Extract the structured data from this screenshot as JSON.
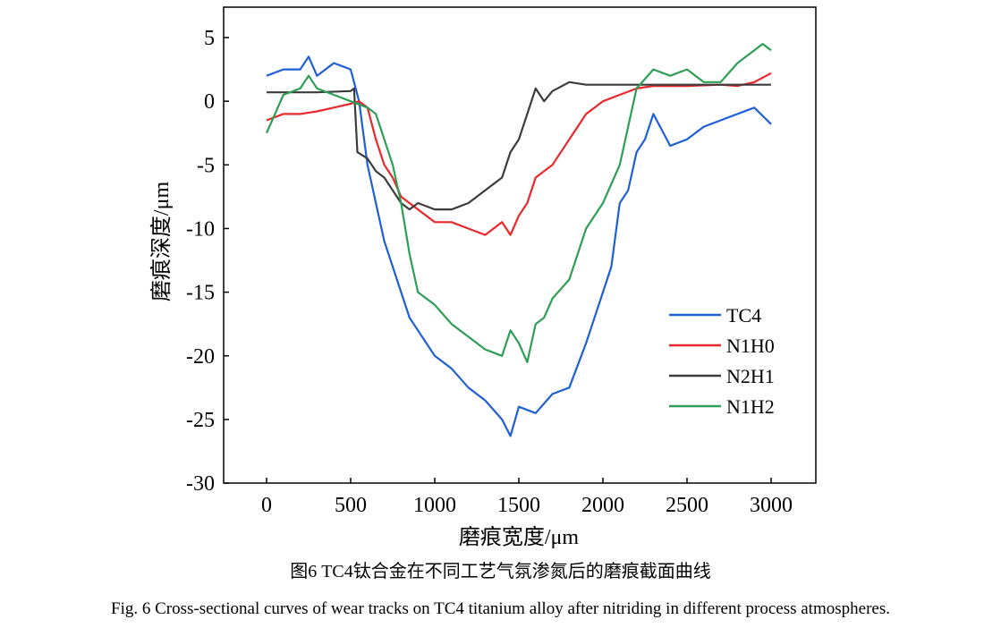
{
  "chart_data": {
    "type": "line",
    "xlabel": "磨痕宽度/μm",
    "ylabel": "磨痕深度/μm",
    "xlim": [
      -250,
      3250
    ],
    "ylim": [
      -30,
      7
    ],
    "xticks": [
      0,
      500,
      1000,
      1500,
      2000,
      2500,
      3000
    ],
    "yticks": [
      5,
      0,
      -5,
      -10,
      -15,
      -20,
      -25,
      -30
    ],
    "grid": false,
    "legend": "right",
    "series": [
      {
        "name": "TC4",
        "color": "#1f5fd6",
        "x": [
          0,
          100,
          200,
          250,
          300,
          400,
          500,
          550,
          600,
          650,
          700,
          750,
          800,
          850,
          900,
          1000,
          1100,
          1200,
          1300,
          1400,
          1450,
          1500,
          1600,
          1700,
          1800,
          1900,
          2000,
          2050,
          2100,
          2150,
          2200,
          2250,
          2300,
          2400,
          2500,
          2600,
          2700,
          2800,
          2900,
          3000
        ],
        "y": [
          2,
          2.5,
          2.5,
          3.5,
          2,
          3,
          2.5,
          0,
          -5,
          -8,
          -11,
          -13,
          -15,
          -17,
          -18,
          -20,
          -21,
          -22.5,
          -23.5,
          -25,
          -26.3,
          -24,
          -24.5,
          -23,
          -22.5,
          -19,
          -15,
          -13,
          -8,
          -7,
          -4,
          -3,
          -1,
          -3.5,
          -3,
          -2,
          -1.5,
          -1,
          -0.5,
          -1.8
        ]
      },
      {
        "name": "N1H0",
        "color": "#e8282b",
        "x": [
          0,
          100,
          200,
          300,
          400,
          500,
          550,
          600,
          650,
          700,
          750,
          800,
          850,
          900,
          1000,
          1100,
          1200,
          1300,
          1400,
          1450,
          1500,
          1550,
          1600,
          1700,
          1800,
          1850,
          1900,
          2000,
          2100,
          2200,
          2300,
          2500,
          2700,
          2800,
          2900,
          3000
        ],
        "y": [
          -1.5,
          -1,
          -1,
          -0.8,
          -0.5,
          -0.2,
          0,
          -0.5,
          -3,
          -5,
          -6,
          -7.5,
          -8,
          -8.5,
          -9.5,
          -9.5,
          -10,
          -10.5,
          -9.5,
          -10.5,
          -9,
          -8,
          -6,
          -5,
          -3,
          -2,
          -1,
          0,
          0.5,
          1,
          1.2,
          1.2,
          1.3,
          1.2,
          1.5,
          2.2
        ]
      },
      {
        "name": "N2H1",
        "color": "#3c3c3c",
        "x": [
          0,
          100,
          300,
          500,
          520,
          540,
          600,
          650,
          700,
          750,
          800,
          850,
          900,
          1000,
          1100,
          1200,
          1300,
          1400,
          1450,
          1500,
          1550,
          1600,
          1650,
          1700,
          1800,
          1900,
          2000,
          2500,
          3000
        ],
        "y": [
          0.7,
          0.7,
          0.7,
          0.8,
          1,
          -4,
          -4.5,
          -5.5,
          -6,
          -7,
          -8,
          -8.5,
          -8,
          -8.5,
          -8.5,
          -8,
          -7,
          -6,
          -4,
          -3,
          -1,
          1,
          0,
          0.8,
          1.5,
          1.3,
          1.3,
          1.3,
          1.3
        ]
      },
      {
        "name": "N1H2",
        "color": "#2e9e55",
        "x": [
          0,
          50,
          100,
          200,
          250,
          300,
          400,
          500,
          600,
          650,
          700,
          750,
          800,
          850,
          900,
          1000,
          1100,
          1200,
          1300,
          1400,
          1450,
          1500,
          1550,
          1600,
          1650,
          1700,
          1800,
          1900,
          2000,
          2100,
          2150,
          2200,
          2300,
          2400,
          2500,
          2600,
          2700,
          2800,
          2900,
          2950,
          3000
        ],
        "y": [
          -2.5,
          -1,
          0.5,
          1,
          2,
          1,
          0.5,
          0,
          -0.5,
          -1,
          -3,
          -5,
          -8,
          -12,
          -15,
          -16,
          -17.5,
          -18.5,
          -19.5,
          -20,
          -18,
          -19,
          -20.5,
          -17.5,
          -17,
          -15.5,
          -14,
          -10,
          -8,
          -5,
          -2,
          1,
          2.5,
          2,
          2.5,
          1.5,
          1.5,
          3,
          4,
          4.5,
          4
        ]
      }
    ]
  },
  "caption_cn": "图6 TC4钛合金在不同工艺气氛渗氮后的磨痕截面曲线",
  "caption_en": "Fig. 6 Cross-sectional curves of wear tracks on TC4 titanium alloy after nitriding in different process atmospheres."
}
